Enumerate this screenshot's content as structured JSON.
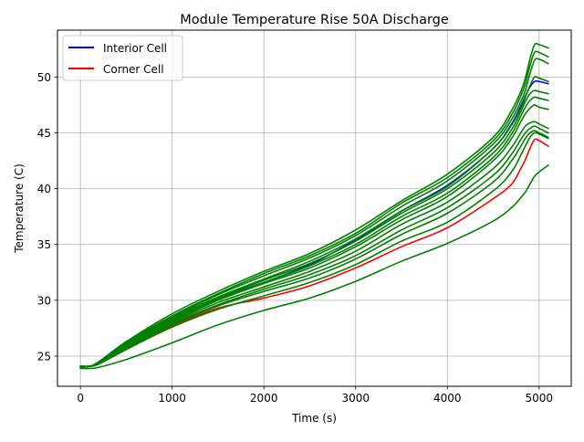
{
  "chart_data": {
    "type": "line",
    "title": "Module Temperature Rise 50A Discharge",
    "xlabel": "Time (s)",
    "ylabel": "Temperature (C)",
    "xlim": [
      -250,
      5350
    ],
    "ylim": [
      22.3,
      54.2
    ],
    "xticks": [
      0,
      1000,
      2000,
      3000,
      4000,
      5000
    ],
    "yticks": [
      25,
      30,
      35,
      40,
      45,
      50
    ],
    "grid": true,
    "legend": {
      "position": "top-left",
      "entries": [
        "Interior Cell",
        "Corner Cell"
      ]
    },
    "colors": {
      "interior": "#0000ff",
      "corner": "#ff0000",
      "other": "#008000"
    },
    "x": [
      0,
      100,
      200,
      500,
      1000,
      1500,
      2000,
      2500,
      3000,
      3500,
      4000,
      4500,
      4700,
      4800,
      4850,
      4900,
      4950,
      5000,
      5100
    ],
    "series": [
      {
        "name": "Interior Cell",
        "color": "#0000ff",
        "values": [
          24.1,
          24.1,
          24.4,
          25.9,
          28.2,
          30.2,
          31.6,
          33.2,
          35.4,
          38.0,
          40.3,
          43.6,
          45.8,
          47.4,
          48.3,
          49.1,
          49.6,
          49.6,
          49.4
        ]
      },
      {
        "name": "Corner Cell",
        "color": "#ff0000",
        "values": [
          24.0,
          24.1,
          24.3,
          25.6,
          27.7,
          29.3,
          30.2,
          31.3,
          32.9,
          34.8,
          36.5,
          39.1,
          40.4,
          41.8,
          42.6,
          43.6,
          44.4,
          44.3,
          43.8
        ]
      },
      {
        "color": "#008000",
        "values": [
          24.1,
          24.1,
          24.5,
          26.3,
          28.8,
          30.8,
          32.6,
          34.2,
          36.3,
          38.9,
          41.3,
          44.6,
          47.0,
          48.7,
          49.9,
          51.6,
          52.9,
          52.9,
          52.6
        ]
      },
      {
        "color": "#008000",
        "values": [
          24.1,
          24.1,
          24.4,
          26.2,
          28.6,
          30.6,
          32.4,
          34.0,
          36.0,
          38.7,
          41.0,
          44.3,
          46.6,
          48.3,
          49.4,
          51.0,
          52.2,
          52.2,
          51.8
        ]
      },
      {
        "color": "#008000",
        "values": [
          24.1,
          24.1,
          24.4,
          26.1,
          28.5,
          30.5,
          32.2,
          33.8,
          35.8,
          38.4,
          40.7,
          44.0,
          46.2,
          47.8,
          48.8,
          50.3,
          51.5,
          51.6,
          51.2
        ]
      },
      {
        "color": "#008000",
        "values": [
          24.1,
          24.1,
          24.4,
          26.0,
          28.4,
          30.3,
          31.9,
          33.5,
          35.5,
          38.0,
          40.2,
          43.6,
          45.7,
          47.2,
          48.2,
          49.2,
          50.0,
          49.9,
          49.6
        ]
      },
      {
        "color": "#008000",
        "values": [
          24.1,
          24.1,
          24.4,
          26.0,
          28.3,
          30.2,
          31.8,
          33.3,
          35.3,
          37.8,
          40.0,
          43.2,
          45.3,
          46.9,
          47.8,
          48.5,
          48.8,
          48.7,
          48.5
        ]
      },
      {
        "color": "#008000",
        "values": [
          24.1,
          24.1,
          24.4,
          25.9,
          28.2,
          30.1,
          31.6,
          33.1,
          35.0,
          37.5,
          39.6,
          42.8,
          44.9,
          46.5,
          47.3,
          47.9,
          48.2,
          48.1,
          47.9
        ]
      },
      {
        "color": "#008000",
        "values": [
          24.1,
          24.1,
          24.4,
          25.9,
          28.1,
          30.0,
          31.5,
          32.9,
          34.8,
          37.2,
          39.3,
          42.5,
          44.5,
          46.0,
          46.7,
          47.2,
          47.5,
          47.3,
          47.1
        ]
      },
      {
        "color": "#008000",
        "values": [
          24.0,
          24.1,
          24.3,
          25.8,
          28.0,
          29.8,
          31.2,
          32.6,
          34.4,
          36.8,
          38.8,
          41.8,
          43.7,
          45.0,
          45.6,
          45.9,
          46.0,
          45.8,
          45.4
        ]
      },
      {
        "color": "#008000",
        "values": [
          24.0,
          24.1,
          24.3,
          25.7,
          27.9,
          29.6,
          31.0,
          32.3,
          34.0,
          36.3,
          38.3,
          41.2,
          43.1,
          44.4,
          45.0,
          45.4,
          45.6,
          45.4,
          45.0
        ]
      },
      {
        "color": "#008000",
        "values": [
          24.0,
          24.1,
          24.3,
          25.7,
          27.8,
          29.5,
          30.8,
          32.0,
          33.7,
          35.9,
          37.8,
          40.6,
          42.5,
          43.8,
          44.5,
          45.0,
          45.2,
          45.0,
          44.6
        ]
      },
      {
        "color": "#008000",
        "values": [
          24.0,
          24.1,
          24.3,
          25.6,
          27.6,
          29.2,
          30.4,
          31.6,
          33.2,
          35.3,
          37.0,
          39.8,
          41.5,
          43.0,
          43.8,
          44.6,
          45.0,
          44.9,
          44.5
        ]
      },
      {
        "color": "#008000",
        "values": [
          23.9,
          23.9,
          24.0,
          24.7,
          26.2,
          27.8,
          29.1,
          30.2,
          31.7,
          33.5,
          35.1,
          37.1,
          38.3,
          39.2,
          39.7,
          40.4,
          41.1,
          41.5,
          42.1
        ]
      }
    ]
  }
}
